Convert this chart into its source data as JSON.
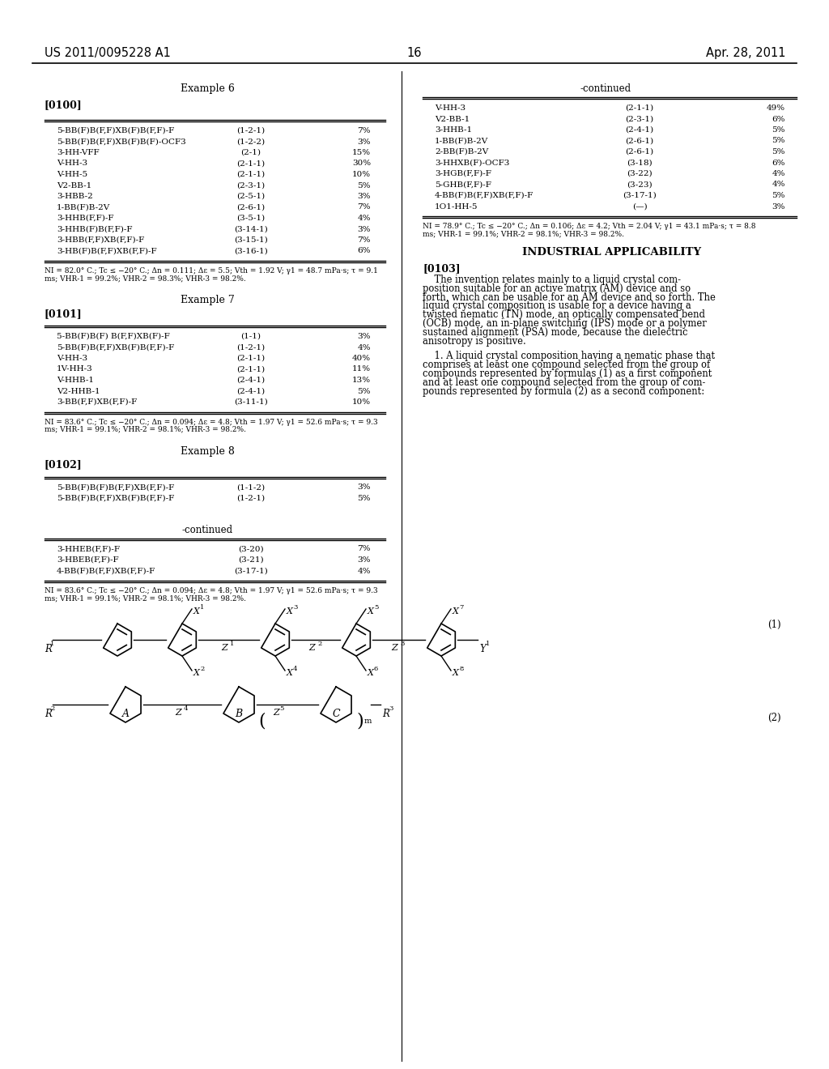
{
  "bg_color": "#ffffff",
  "header_left": "US 2011/0095228 A1",
  "header_center": "16",
  "header_right": "Apr. 28, 2011",
  "example6_title": "Example 6",
  "example6_label": "[0100]",
  "example6_table": [
    [
      "5-BB(F)B(F,F)XB(F)B(F,F)-F",
      "(1-2-1)",
      "7%"
    ],
    [
      "5-BB(F)B(F,F)XB(F)B(F)-OCF3",
      "(1-2-2)",
      "3%"
    ],
    [
      "3-HH-VFF",
      "(2-1)",
      "15%"
    ],
    [
      "V-HH-3",
      "(2-1-1)",
      "30%"
    ],
    [
      "V-HH-5",
      "(2-1-1)",
      "10%"
    ],
    [
      "V2-BB-1",
      "(2-3-1)",
      "5%"
    ],
    [
      "3-HBB-2",
      "(2-5-1)",
      "3%"
    ],
    [
      "1-BB(F)B-2V",
      "(2-6-1)",
      "7%"
    ],
    [
      "3-HHB(F,F)-F",
      "(3-5-1)",
      "4%"
    ],
    [
      "3-HHB(F)B(F,F)-F",
      "(3-14-1)",
      "3%"
    ],
    [
      "3-HBB(F,F)XB(F,F)-F",
      "(3-15-1)",
      "7%"
    ],
    [
      "3-HB(F)B(F,F)XB(F,F)-F",
      "(3-16-1)",
      "6%"
    ]
  ],
  "example6_note_lines": [
    "NI = 82.0° C.; Tc ≤ −20° C.; Δn = 0.111; Δε = 5.5; Vth = 1.92 V; γ1 = 48.7 mPa·s; τ = 9.1",
    "ms; VHR-1 = 99.2%; VHR-2 = 98.3%; VHR-3 = 98.2%."
  ],
  "example7_title": "Example 7",
  "example7_label": "[0101]",
  "example7_table": [
    [
      "5-BB(F)B(F) B(F,F)XB(F)-F",
      "(1-1)",
      "3%"
    ],
    [
      "5-BB(F)B(F,F)XB(F)B(F,F)-F",
      "(1-2-1)",
      "4%"
    ],
    [
      "V-HH-3",
      "(2-1-1)",
      "40%"
    ],
    [
      "1V-HH-3",
      "(2-1-1)",
      "11%"
    ],
    [
      "V-HHB-1",
      "(2-4-1)",
      "13%"
    ],
    [
      "V2-HHB-1",
      "(2-4-1)",
      "5%"
    ],
    [
      "3-BB(F,F)XB(F,F)-F",
      "(3-11-1)",
      "10%"
    ]
  ],
  "example7_note_lines": [
    "NI = 83.6° C.; Tc ≤ −20° C.; Δn = 0.094; Δε = 4.8; Vth = 1.97 V; γ1 = 52.6 mPa·s; τ = 9.3",
    "ms; VHR-1 = 99.1%; VHR-2 = 98.1%; VHR-3 = 98.2%."
  ],
  "example8_title": "Example 8",
  "example8_label": "[0102]",
  "example8_table_partial": [
    [
      "5-BB(F)B(F)B(F,F)XB(F,F)-F",
      "(1-1-2)",
      "3%"
    ],
    [
      "5-BB(F)B(F,F)XB(F)B(F,F)-F",
      "(1-2-1)",
      "5%"
    ]
  ],
  "right_continued": "-continued",
  "right_table": [
    [
      "V-HH-3",
      "(2-1-1)",
      "49%"
    ],
    [
      "V2-BB-1",
      "(2-3-1)",
      "6%"
    ],
    [
      "3-HHB-1",
      "(2-4-1)",
      "5%"
    ],
    [
      "1-BB(F)B-2V",
      "(2-6-1)",
      "5%"
    ],
    [
      "2-BB(F)B-2V",
      "(2-6-1)",
      "5%"
    ],
    [
      "3-HHXB(F)-OCF3",
      "(3-18)",
      "6%"
    ],
    [
      "3-HGB(F,F)-F",
      "(3-22)",
      "4%"
    ],
    [
      "5-GHB(F,F)-F",
      "(3-23)",
      "4%"
    ],
    [
      "4-BB(F)B(F,F)XB(F,F)-F",
      "(3-17-1)",
      "5%"
    ],
    [
      "1O1-HH-5",
      "(—)",
      "3%"
    ]
  ],
  "right_note_lines": [
    "NI = 78.9° C.; Tc ≤ −20° C.; Δn = 0.106; Δε = 4.2; Vth = 2.04 V; γ1 = 43.1 mPa·s; τ = 8.8",
    "ms; VHR-1 = 99.1%; VHR-2 = 98.1%; VHR-3 = 98.2%."
  ],
  "industrial_title": "INDUSTRIAL APPLICABILITY",
  "industrial_label": "[0103]",
  "industrial_text_lines": [
    "    The invention relates mainly to a liquid crystal com-",
    "position suitable for an active matrix (AM) device and so",
    "forth, which can be usable for an AM device and so forth. The",
    "liquid crystal composition is usable for a device having a",
    "twisted nematic (TN) mode, an optically compensated bend",
    "(OCB) mode, an in-plane switching (IPS) mode or a polymer",
    "sustained alignment (PSA) mode, because the dielectric",
    "anisotropy is positive."
  ],
  "claim1_lines": [
    "    1. A liquid crystal composition having a nematic phase that",
    "comprises at least one compound selected from the group of",
    "compounds represented by formulas (1) as a first component",
    "and at least one compound selected from the group of com-",
    "pounds represented by formula (2) as a second component:"
  ],
  "continued_label": "-continued",
  "continued_table": [
    [
      "3-HHEB(F,F)-F",
      "(3-20)",
      "7%"
    ],
    [
      "3-HBEB(F,F)-F",
      "(3-21)",
      "3%"
    ],
    [
      "4-BB(F)B(F,F)XB(F,F)-F",
      "(3-17-1)",
      "4%"
    ]
  ],
  "continued_note_lines": [
    "NI = 83.6° C.; Tc ≤ −20° C.; Δn = 0.094; Δε = 4.8; Vth = 1.97 V; γ1 = 52.6 mPa·s; τ = 9.3",
    "ms; VHR-1 = 99.1%; VHR-2 = 98.1%; VHR-3 = 98.2%."
  ]
}
